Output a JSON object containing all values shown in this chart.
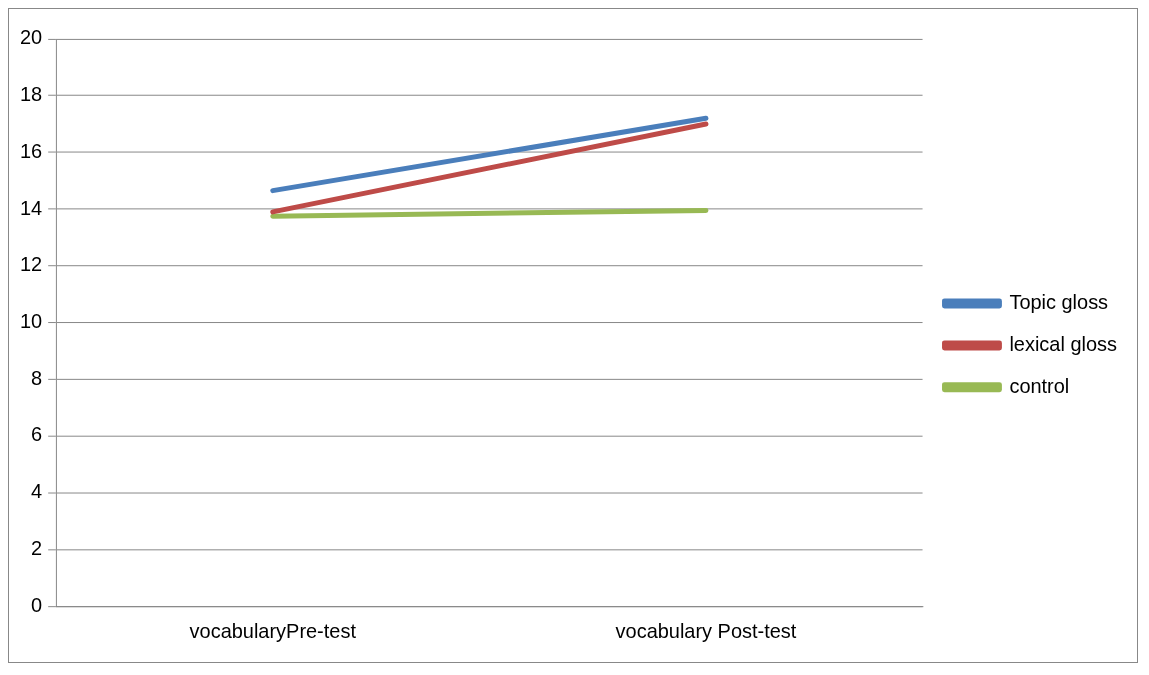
{
  "chart_data": {
    "type": "line",
    "categories": [
      "vocabularyPre-test",
      "vocabulary Post-test"
    ],
    "series": [
      {
        "name": "Topic gloss",
        "color": "#4a7ebb",
        "values": [
          14.65,
          17.2
        ]
      },
      {
        "name": "lexical gloss",
        "color": "#be4b48",
        "values": [
          13.9,
          17.0
        ]
      },
      {
        "name": "control",
        "color": "#98b954",
        "values": [
          13.75,
          13.95
        ]
      }
    ],
    "ylim": [
      0,
      20
    ],
    "yticks": [
      0,
      2,
      4,
      6,
      8,
      10,
      12,
      14,
      16,
      18,
      20
    ],
    "grid": "y",
    "legend": "right",
    "marker": "none",
    "line_style": "solid"
  }
}
